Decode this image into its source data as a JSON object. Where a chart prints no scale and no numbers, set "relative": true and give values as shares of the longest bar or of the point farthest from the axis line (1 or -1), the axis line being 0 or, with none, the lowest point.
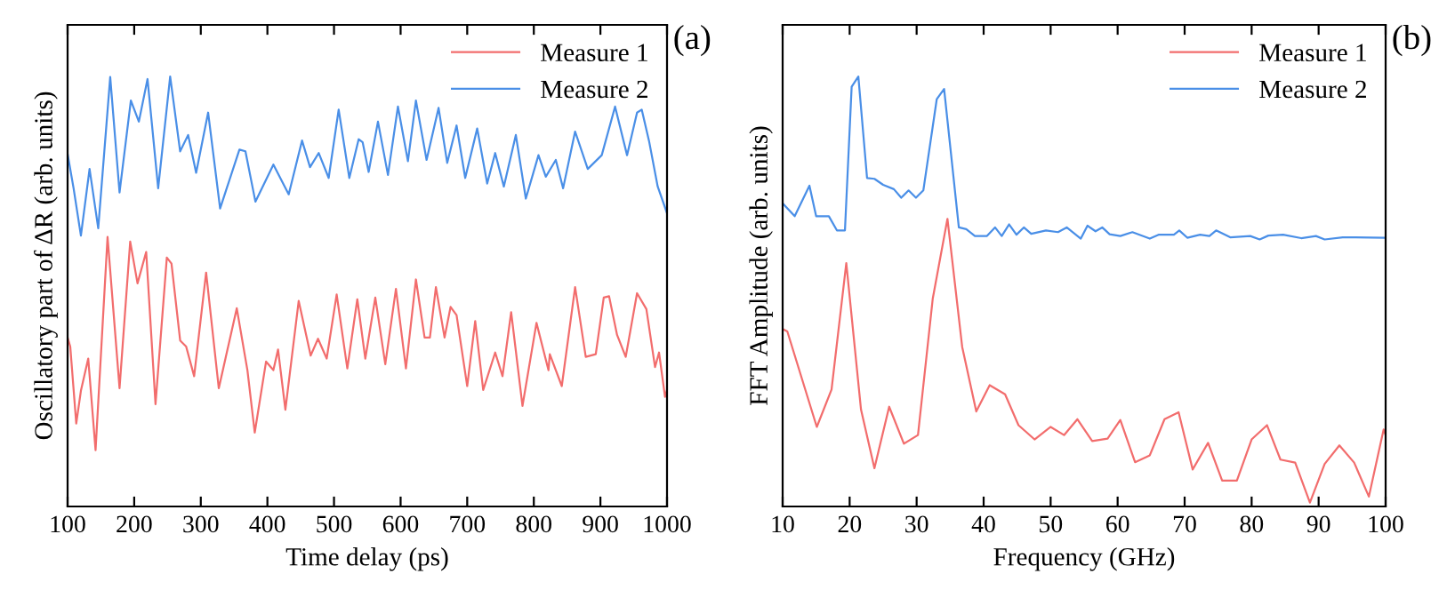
{
  "chart_data": [
    {
      "type": "line",
      "relative": true,
      "xlabel": "Time delay (ps)",
      "ylabel": "Oscillatory part of ΔR (arb. units)",
      "annotations": [
        "(a)"
      ],
      "xlim": [
        100,
        1000
      ],
      "xticks": [
        100,
        200,
        300,
        400,
        500,
        600,
        700,
        800,
        900,
        1000
      ],
      "legend": "top right",
      "grid": false,
      "series": [
        {
          "name": "Measure 1",
          "color": "#f26d6d",
          "x": [
            100,
            104,
            113,
            120,
            131,
            142,
            160,
            178,
            194,
            205,
            218,
            232,
            249,
            256,
            269,
            278,
            290,
            308,
            327,
            345,
            354,
            370,
            381,
            398,
            409,
            416,
            427,
            447,
            465,
            476,
            489,
            504,
            520,
            535,
            547,
            562,
            577,
            593,
            608,
            623,
            636,
            644,
            653,
            666,
            675,
            684,
            700,
            712,
            724,
            742,
            753,
            766,
            783,
            804,
            822,
            824,
            842,
            862,
            878,
            893,
            905,
            913,
            925,
            938,
            955,
            969,
            982,
            988,
            997,
            1000
          ],
          "values": [
            0.393,
            0.372,
            0.193,
            0.269,
            0.344,
            0.131,
            0.627,
            0.275,
            0.616,
            0.519,
            0.592,
            0.238,
            0.579,
            0.565,
            0.386,
            0.372,
            0.303,
            0.544,
            0.275,
            0.399,
            0.461,
            0.317,
            0.172,
            0.337,
            0.317,
            0.365,
            0.225,
            0.478,
            0.351,
            0.39,
            0.344,
            0.493,
            0.321,
            0.482,
            0.344,
            0.486,
            0.331,
            0.506,
            0.321,
            0.528,
            0.393,
            0.393,
            0.51,
            0.393,
            0.464,
            0.445,
            0.28,
            0.431,
            0.271,
            0.358,
            0.303,
            0.452,
            0.234,
            0.427,
            0.317,
            0.354,
            0.28,
            0.51,
            0.348,
            0.354,
            0.486,
            0.489,
            0.399,
            0.348,
            0.496,
            0.459,
            0.324,
            0.358,
            0.255,
            0.271
          ]
        },
        {
          "name": "Measure 2",
          "color": "#4a8fe7",
          "x": [
            100,
            109,
            120,
            133,
            146,
            164,
            178,
            195,
            207,
            220,
            236,
            254,
            269,
            281,
            293,
            311,
            329,
            358,
            367,
            382,
            409,
            432,
            452,
            464,
            477,
            492,
            507,
            523,
            537,
            543,
            552,
            566,
            581,
            596,
            611,
            623,
            639,
            657,
            670,
            684,
            697,
            715,
            730,
            742,
            755,
            773,
            788,
            807,
            818,
            833,
            844,
            862,
            881,
            902,
            922,
            940,
            955,
            962,
            973,
            986,
            1000
          ],
          "values": [
            0.82,
            0.74,
            0.63,
            0.785,
            0.647,
            0.999,
            0.73,
            0.944,
            0.895,
            0.994,
            0.74,
            1.0,
            0.826,
            0.864,
            0.776,
            0.916,
            0.693,
            0.83,
            0.826,
            0.709,
            0.795,
            0.726,
            0.851,
            0.789,
            0.822,
            0.764,
            0.923,
            0.764,
            0.854,
            0.847,
            0.778,
            0.895,
            0.771,
            0.93,
            0.803,
            0.944,
            0.806,
            0.927,
            0.799,
            0.886,
            0.764,
            0.879,
            0.751,
            0.822,
            0.744,
            0.864,
            0.716,
            0.817,
            0.767,
            0.806,
            0.74,
            0.872,
            0.785,
            0.817,
            0.93,
            0.817,
            0.916,
            0.923,
            0.85,
            0.744,
            0.682
          ]
        }
      ]
    },
    {
      "type": "line",
      "relative": true,
      "xlabel": "Frequency (GHz)",
      "ylabel": "FFT Amplitude (arb. units)",
      "annotations": [
        "(b)"
      ],
      "xlim": [
        10,
        100
      ],
      "xticks": [
        10,
        20,
        30,
        40,
        50,
        60,
        70,
        80,
        90,
        100
      ],
      "legend": "top right",
      "grid": false,
      "series": [
        {
          "name": "Measure 1",
          "color": "#f26d6d",
          "x": [
            10,
            10.7,
            15.1,
            17.3,
            19.5,
            21.7,
            23.7,
            25.9,
            28.1,
            30.2,
            32.4,
            34.6,
            36.8,
            38.9,
            40.9,
            43.2,
            45.2,
            47.6,
            50,
            52,
            54,
            56.2,
            58.5,
            60.4,
            62.6,
            64.8,
            67,
            69.1,
            71.2,
            73.5,
            75.6,
            77.8,
            80,
            82.3,
            84.3,
            86.5,
            88.7,
            90.9,
            93.1,
            95.3,
            97.5,
            99.7,
            100
          ],
          "values": [
            0.413,
            0.407,
            0.185,
            0.272,
            0.566,
            0.225,
            0.089,
            0.232,
            0.146,
            0.166,
            0.483,
            0.669,
            0.371,
            0.221,
            0.282,
            0.261,
            0.189,
            0.156,
            0.185,
            0.166,
            0.203,
            0.152,
            0.158,
            0.201,
            0.103,
            0.119,
            0.203,
            0.219,
            0.086,
            0.148,
            0.06,
            0.06,
            0.156,
            0.189,
            0.109,
            0.102,
            0.009,
            0.099,
            0.142,
            0.102,
            0.023,
            0.179,
            0.166
          ]
        },
        {
          "name": "Measure 2",
          "color": "#4a8fe7",
          "x": [
            10,
            11.8,
            14,
            15,
            16.9,
            18.1,
            19.3,
            20.3,
            21.3,
            22.6,
            23.7,
            25,
            26.6,
            27.7,
            28.8,
            29.9,
            31,
            33,
            34.1,
            36.3,
            37.4,
            38.7,
            40.5,
            41.7,
            42.7,
            43.8,
            44.9,
            46,
            47.1,
            49.3,
            51.1,
            52.4,
            54.5,
            55.5,
            56.7,
            57.7,
            58.8,
            60.4,
            62.2,
            64.8,
            66.1,
            68.4,
            69.2,
            70.4,
            72.3,
            73.7,
            74.7,
            76.8,
            79.8,
            81.2,
            82.5,
            84.7,
            87.4,
            89.6,
            90.9,
            93.6,
            100
          ],
          "values": [
            0.705,
            0.675,
            0.746,
            0.675,
            0.675,
            0.642,
            0.642,
            0.976,
            1.0,
            0.764,
            0.762,
            0.748,
            0.738,
            0.718,
            0.735,
            0.718,
            0.735,
            0.947,
            0.971,
            0.649,
            0.645,
            0.629,
            0.629,
            0.649,
            0.629,
            0.656,
            0.632,
            0.649,
            0.634,
            0.642,
            0.638,
            0.649,
            0.623,
            0.653,
            0.64,
            0.649,
            0.633,
            0.629,
            0.638,
            0.623,
            0.632,
            0.632,
            0.642,
            0.625,
            0.632,
            0.629,
            0.642,
            0.626,
            0.629,
            0.621,
            0.63,
            0.632,
            0.624,
            0.629,
            0.621,
            0.626,
            0.625
          ]
        }
      ]
    }
  ]
}
